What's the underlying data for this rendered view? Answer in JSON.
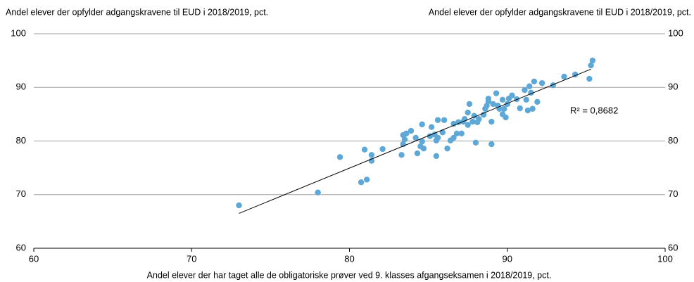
{
  "chart_data": {
    "type": "scatter",
    "ylabel": "Andel elever der opfylder adgangskravene til EUD i 2018/2019, pct.",
    "y2label": "Andel elever der opfylder adgangskravene til EUD i 2018/2019, pct.",
    "xlabel": "Andel elever der har taget alle de obligatoriske prøver ved 9. klasses afgangseksamen i 2018/2019, pct.",
    "annotation": "R² = 0,8682",
    "color": "#5ea8d8",
    "x": [
      73.0,
      78.0,
      79.4,
      80.96,
      80.74,
      81.1,
      81.4,
      81.4,
      82.1,
      83.3,
      83.4,
      83.5,
      83.4,
      83.6,
      83.9,
      84.2,
      84.3,
      84.6,
      84.5,
      84.7,
      84.6,
      85.1,
      85.2,
      85.4,
      85.5,
      85.5,
      85.6,
      85.6,
      85.9,
      86.0,
      86.2,
      86.4,
      86.6,
      86.6,
      86.8,
      86.9,
      87.1,
      87.2,
      87.3,
      87.5,
      87.6,
      87.5,
      87.8,
      87.9,
      88.1,
      88.2,
      88.0,
      88.5,
      88.6,
      88.7,
      88.8,
      88.8,
      89.0,
      89.0,
      89.1,
      89.3,
      89.4,
      89.5,
      89.7,
      89.7,
      89.8,
      89.9,
      90.0,
      90.1,
      90.3,
      90.6,
      90.8,
      91.1,
      91.2,
      91.3,
      91.4,
      91.5,
      91.6,
      91.7,
      91.9,
      92.2,
      92.9,
      93.6,
      94.3,
      95.2,
      95.4,
      95.3
    ],
    "values": [
      68.0,
      70.4,
      77.0,
      78.4,
      72.3,
      72.8,
      77.4,
      76.3,
      78.5,
      77.4,
      79.4,
      80.3,
      81.1,
      81.4,
      81.9,
      80.6,
      77.7,
      83.1,
      79.0,
      78.6,
      79.9,
      80.9,
      82.6,
      81.2,
      80.1,
      77.2,
      80.6,
      83.9,
      81.6,
      83.9,
      78.6,
      80.1,
      80.6,
      83.2,
      81.4,
      83.5,
      81.4,
      83.6,
      84.1,
      85.3,
      86.9,
      83.0,
      83.6,
      84.7,
      83.5,
      84.1,
      79.7,
      84.9,
      86.0,
      86.6,
      87.4,
      87.9,
      83.6,
      79.4,
      86.9,
      88.9,
      86.6,
      86.0,
      87.7,
      85.0,
      86.0,
      84.4,
      86.9,
      87.9,
      88.5,
      87.8,
      86.1,
      89.5,
      87.7,
      85.7,
      90.2,
      89.0,
      86.0,
      91.1,
      87.3,
      90.8,
      90.4,
      92.0,
      92.4,
      91.6,
      95.0,
      94.1
    ],
    "trendline": {
      "x": [
        73.0,
        95.3
      ],
      "values": [
        66.5,
        93.4
      ],
      "color": "#000000"
    },
    "xlim": [
      60,
      100
    ],
    "xticks": [
      60,
      70,
      80,
      90,
      100
    ],
    "ylim": [
      60,
      100
    ],
    "yticks": [
      60,
      70,
      80,
      90,
      100
    ],
    "grid": true
  }
}
